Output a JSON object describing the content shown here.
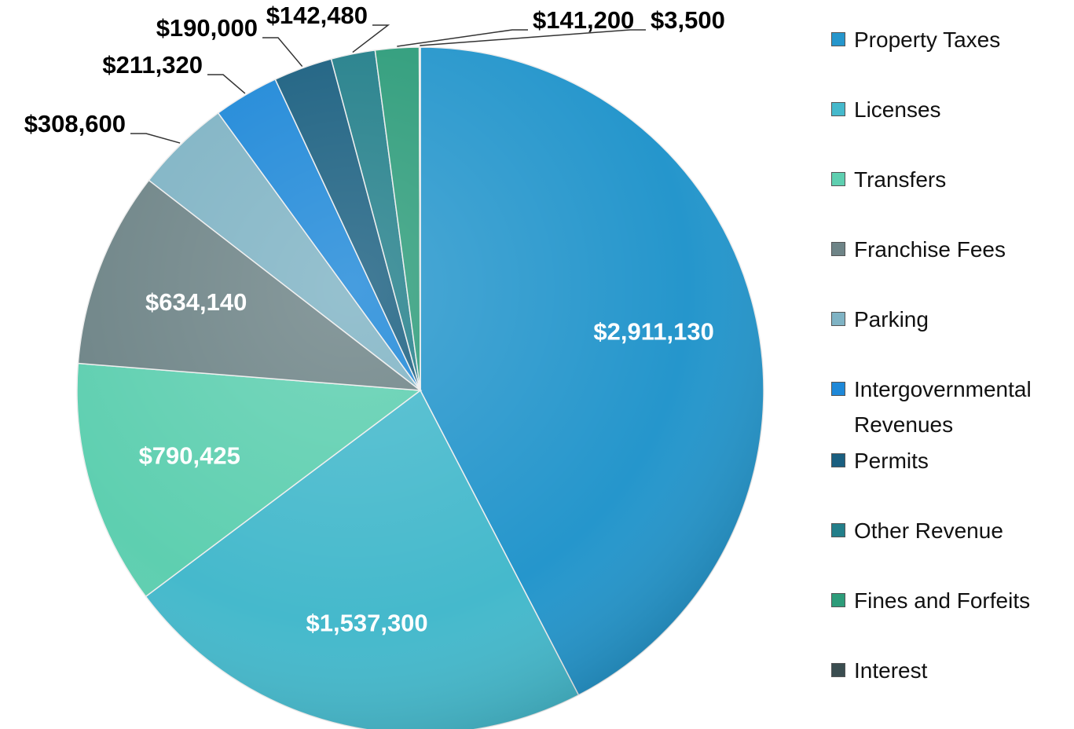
{
  "chart_data": {
    "type": "pie",
    "categories": [
      "Property Taxes",
      "Licenses",
      "Transfers",
      "Franchise Fees",
      "Parking",
      "Intergovernmental Revenues",
      "Permits",
      "Other Revenue",
      "Fines and Forfeits",
      "Interest"
    ],
    "values": [
      2911130,
      1537300,
      790425,
      634140,
      308600,
      211320,
      190000,
      142480,
      141200,
      3500
    ],
    "value_labels": [
      "$2,911,130",
      "$1,537,300",
      "$790,425",
      "$634,140",
      "$308,600",
      "$211,320",
      "$190,000",
      "$142,480",
      "$141,200",
      "$3,500"
    ],
    "colors": [
      "#2596cc",
      "#45b9cc",
      "#5ecfb0",
      "#6e8487",
      "#7fb3c4",
      "#1e88d8",
      "#1a5f80",
      "#237f8a",
      "#2d9c7a",
      "#3a4d50"
    ],
    "legend": "right"
  }
}
